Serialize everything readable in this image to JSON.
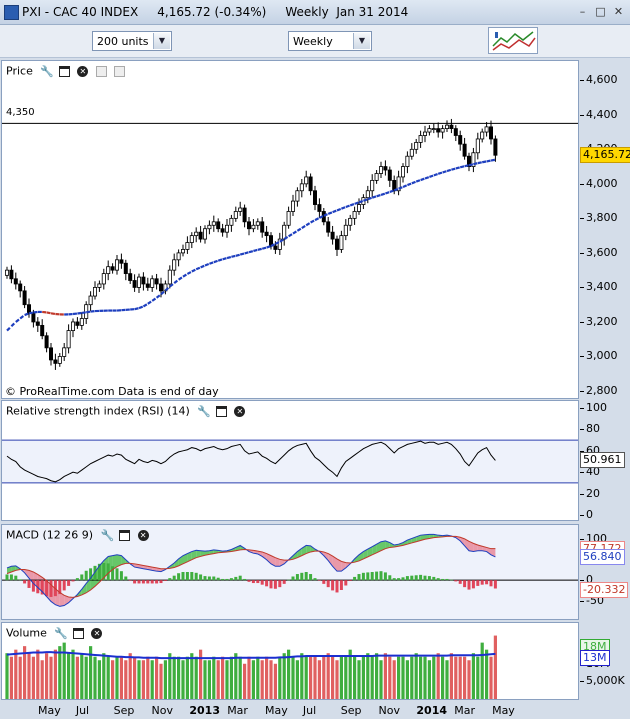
{
  "window": {
    "title": "PXI - CAC 40 INDEX     4,165.72 (-0.34%)     Weekly  Jan 31 2014",
    "buttons": [
      "–",
      "□",
      "✕"
    ]
  },
  "toolbar": {
    "units": "200 units",
    "period": "Weekly"
  },
  "colors": {
    "up": "#ffffff",
    "down": "#000000",
    "ma": "#1e3fbf",
    "ma_down": "#c0392b",
    "rsi": "#000000",
    "macd": "#1e3fbf",
    "signal": "#c0392b",
    "hist_pos": "#3fae3f",
    "hist_neg": "#e0455a",
    "vol_pos": "#3fae3f",
    "vol_neg": "#e06060"
  },
  "chart_data": [
    {
      "type": "candlestick",
      "title": "Price",
      "footer": "© ProRealTime.com  Data is end of day",
      "reference_line": {
        "label": "4,350",
        "value": 4350
      },
      "last_value_label": "4,165.72",
      "ylim": [
        2800,
        4700
      ],
      "yticks": [
        "4,600",
        "4,400",
        "4,200",
        "4,000",
        "3,800",
        "3,600",
        "3,400",
        "3,200",
        "3,000",
        "2,800"
      ],
      "ytick_values": [
        4600,
        4400,
        4200,
        4000,
        3800,
        3600,
        3400,
        3200,
        3000,
        2800
      ],
      "x_labels": [
        "May",
        "Jul",
        "Sep",
        "Nov",
        "2013",
        "Mar",
        "May",
        "Jul",
        "Sep",
        "Nov",
        "2014",
        "Mar",
        "May"
      ],
      "closes": [
        3500,
        3450,
        3420,
        3380,
        3300,
        3250,
        3200,
        3180,
        3120,
        3050,
        2980,
        2960,
        3000,
        3050,
        3150,
        3200,
        3180,
        3220,
        3300,
        3350,
        3400,
        3420,
        3480,
        3520,
        3500,
        3560,
        3540,
        3480,
        3440,
        3400,
        3460,
        3420,
        3400,
        3450,
        3420,
        3380,
        3420,
        3500,
        3560,
        3600,
        3620,
        3660,
        3700,
        3720,
        3680,
        3740,
        3760,
        3780,
        3740,
        3720,
        3760,
        3800,
        3840,
        3860,
        3780,
        3740,
        3760,
        3780,
        3720,
        3700,
        3640,
        3620,
        3680,
        3760,
        3840,
        3900,
        3960,
        4000,
        4040,
        3960,
        3880,
        3840,
        3780,
        3720,
        3680,
        3620,
        3700,
        3760,
        3800,
        3840,
        3880,
        3920,
        3960,
        4020,
        4060,
        4100,
        4080,
        4020,
        3960,
        4040,
        4100,
        4160,
        4200,
        4240,
        4280,
        4300,
        4320,
        4320,
        4300,
        4320,
        4340,
        4320,
        4280,
        4230,
        4160,
        4100,
        4180,
        4260,
        4300,
        4330,
        4260,
        4165.72
      ],
      "ma_values": [
        3150,
        3175,
        3200,
        3220,
        3240,
        3250,
        3255,
        3258,
        3258,
        3255,
        3250,
        3246,
        3244,
        3243,
        3244,
        3246,
        3249,
        3252,
        3256,
        3260,
        3263,
        3264,
        3265,
        3266,
        3266,
        3266,
        3268,
        3270,
        3272,
        3274,
        3280,
        3290,
        3305,
        3322,
        3340,
        3360,
        3382,
        3405,
        3425,
        3445,
        3462,
        3478,
        3492,
        3505,
        3516,
        3527,
        3537,
        3546,
        3555,
        3563,
        3570,
        3577,
        3583,
        3590,
        3597,
        3604,
        3611,
        3618,
        3624,
        3631,
        3640,
        3652,
        3665,
        3680,
        3696,
        3712,
        3728,
        3744,
        3760,
        3776,
        3790,
        3803,
        3815,
        3826,
        3836,
        3846,
        3856,
        3866,
        3875,
        3884,
        3893,
        3902,
        3911,
        3920,
        3928,
        3936,
        3944,
        3953,
        3962,
        3972,
        3982,
        3993,
        4003,
        4013,
        4022,
        4031,
        4040,
        4049,
        4058,
        4066,
        4074,
        4082,
        4089,
        4096,
        4102,
        4108,
        4114,
        4120,
        4125,
        4130,
        4135,
        4140
      ]
    },
    {
      "type": "line",
      "title": "Relative strength index (RSI) (14)",
      "ylim": [
        0,
        100
      ],
      "yticks": [
        "100",
        "80",
        "60",
        "40",
        "20",
        "0"
      ],
      "ytick_values": [
        100,
        80,
        60,
        40,
        20,
        0
      ],
      "levels": [
        70,
        30
      ],
      "last_value_label": "50.961",
      "values": [
        55,
        52,
        50,
        45,
        42,
        40,
        38,
        36,
        35,
        34,
        32,
        31,
        33,
        36,
        38,
        40,
        39,
        42,
        45,
        48,
        50,
        52,
        54,
        56,
        55,
        57,
        56,
        52,
        50,
        48,
        52,
        50,
        49,
        51,
        50,
        48,
        50,
        54,
        57,
        59,
        60,
        61,
        63,
        62,
        60,
        62,
        63,
        64,
        62,
        61,
        62,
        64,
        65,
        66,
        60,
        57,
        58,
        59,
        55,
        53,
        50,
        48,
        52,
        56,
        60,
        63,
        65,
        66,
        67,
        60,
        54,
        51,
        47,
        43,
        40,
        36,
        44,
        50,
        53,
        56,
        59,
        62,
        64,
        66,
        67,
        68,
        66,
        62,
        58,
        62,
        64,
        66,
        67,
        68,
        69,
        67,
        68,
        68,
        66,
        67,
        68,
        66,
        62,
        57,
        50,
        46,
        52,
        58,
        61,
        63,
        56,
        50.961
      ]
    },
    {
      "type": "line",
      "title": "MACD (12 26 9)",
      "ylim": [
        -90,
        130
      ],
      "yticks": [
        "100",
        "50",
        "0",
        "-50"
      ],
      "ytick_values": [
        100,
        50,
        0,
        -50
      ],
      "last_value_labels": {
        "signal": "77.172",
        "macd": "56.840",
        "histogram": "-20.332"
      },
      "macd": [
        30,
        34,
        35,
        28,
        18,
        5,
        -8,
        -18,
        -28,
        -40,
        -52,
        -60,
        -64,
        -62,
        -55,
        -45,
        -35,
        -22,
        -8,
        5,
        20,
        35,
        48,
        58,
        60,
        62,
        60,
        50,
        40,
        32,
        30,
        28,
        26,
        24,
        22,
        21,
        26,
        34,
        42,
        52,
        60,
        65,
        70,
        73,
        72,
        71,
        72,
        74,
        73,
        71,
        72,
        75,
        80,
        85,
        78,
        70,
        66,
        64,
        58,
        50,
        40,
        34,
        34,
        40,
        50,
        60,
        70,
        78,
        85,
        84,
        76,
        70,
        60,
        48,
        34,
        22,
        22,
        30,
        40,
        52,
        62,
        70,
        76,
        82,
        88,
        94,
        96,
        92,
        86,
        88,
        92,
        98,
        102,
        106,
        110,
        111,
        112,
        112,
        110,
        109,
        110,
        108,
        104,
        96,
        84,
        72,
        70,
        72,
        72,
        70,
        62,
        56.84
      ],
      "signal": [
        16,
        20,
        24,
        26,
        26,
        24,
        20,
        14,
        7,
        -1,
        -11,
        -21,
        -30,
        -37,
        -41,
        -42,
        -40,
        -36,
        -31,
        -24,
        -15,
        -5,
        6,
        17,
        26,
        33,
        38,
        41,
        41,
        40,
        38,
        36,
        34,
        32,
        30,
        28,
        28,
        29,
        31,
        35,
        40,
        45,
        50,
        55,
        58,
        61,
        63,
        65,
        67,
        68,
        69,
        70,
        72,
        74,
        75,
        74,
        73,
        71,
        69,
        65,
        60,
        55,
        51,
        49,
        49,
        51,
        55,
        60,
        65,
        69,
        71,
        71,
        69,
        65,
        59,
        52,
        46,
        43,
        42,
        44,
        47,
        52,
        57,
        62,
        67,
        72,
        77,
        80,
        81,
        83,
        85,
        88,
        91,
        94,
        97,
        100,
        102,
        104,
        105,
        106,
        107,
        107,
        107,
        105,
        101,
        95,
        90,
        86,
        83,
        80,
        77,
        77.172
      ]
    },
    {
      "type": "bar",
      "title": "Volume",
      "ylim": [
        0,
        21000000
      ],
      "yticks": [
        "10M",
        "5,000K"
      ],
      "ytick_values": [
        10000000,
        5000000
      ],
      "last_value_labels": {
        "volume": "18M",
        "average": "13M"
      },
      "values": [
        13,
        12,
        14,
        12,
        15,
        13,
        12,
        14,
        11,
        13,
        12,
        14,
        15,
        16,
        13,
        14,
        12,
        13,
        12,
        15,
        12,
        11,
        13,
        12,
        11,
        12,
        12,
        11,
        13,
        12,
        11,
        11,
        12,
        11,
        12,
        10,
        11,
        13,
        12,
        12,
        11,
        12,
        13,
        12,
        14,
        11,
        11,
        12,
        11,
        12,
        11,
        12,
        13,
        12,
        10,
        12,
        11,
        12,
        11,
        12,
        11,
        10,
        12,
        13,
        14,
        12,
        11,
        13,
        12,
        12,
        12,
        11,
        12,
        13,
        12,
        11,
        12,
        12,
        14,
        12,
        11,
        12,
        13,
        12,
        13,
        11,
        13,
        12,
        11,
        12,
        12,
        11,
        12,
        13,
        12,
        12,
        11,
        12,
        13,
        12,
        11,
        13,
        12,
        12,
        12,
        11,
        13,
        12,
        16,
        14,
        12,
        18
      ],
      "average": [
        12.6,
        12.7,
        12.8,
        12.9,
        13,
        13.1,
        13.2,
        13.2,
        13.2,
        13.3,
        13.3,
        13.2,
        13.2,
        13.2,
        13.1,
        13,
        12.9,
        12.8,
        12.7,
        12.6,
        12.5,
        12.4,
        12.3,
        12.2,
        12.1,
        12,
        12,
        11.9,
        11.9,
        11.8,
        11.8,
        11.7,
        11.7,
        11.7,
        11.7,
        11.6,
        11.6,
        11.6,
        11.6,
        11.6,
        11.6,
        11.6,
        11.6,
        11.6,
        11.6,
        11.6,
        11.6,
        11.6,
        11.6,
        11.6,
        11.6,
        11.6,
        11.7,
        11.7,
        11.7,
        11.7,
        11.7,
        11.7,
        11.7,
        11.7,
        11.7,
        11.7,
        11.8,
        11.8,
        11.9,
        12,
        12.1,
        12.1,
        12.2,
        12.2,
        12.2,
        12.2,
        12.2,
        12.2,
        12.2,
        12.2,
        12.2,
        12.2,
        12.2,
        12.2,
        12.2,
        12.2,
        12.2,
        12.2,
        12.3,
        12.3,
        12.3,
        12.3,
        12.3,
        12.3,
        12.3,
        12.3,
        12.3,
        12.3,
        12.3,
        12.3,
        12.3,
        12.3,
        12.3,
        12.3,
        12.3,
        12.4,
        12.4,
        12.4,
        12.4,
        12.4,
        12.4,
        12.4,
        12.5,
        12.6,
        12.7,
        12.8
      ]
    }
  ]
}
